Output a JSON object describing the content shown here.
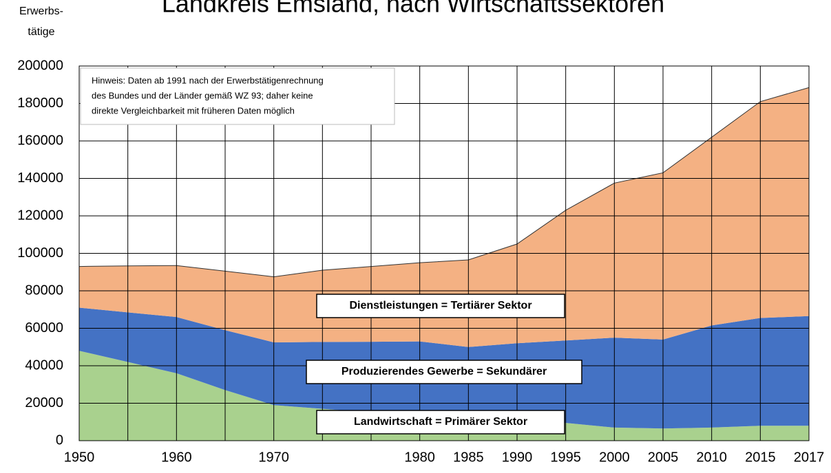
{
  "chart_data": {
    "type": "stacked_area",
    "title": "Landkreis Emsland, nach Wirtschaftssektoren",
    "ylabel_lines": [
      "Erwerbs-",
      "tätige"
    ],
    "note_lines": [
      "Hinweis: Daten ab 1991 nach der Erwerbstätigenrechnung",
      "des Bundes und der Länder gemäß WZ 93; daher keine",
      "direkte Vergleichbarkeit mit früheren Daten möglich"
    ],
    "categories": [
      1950,
      null,
      1960,
      null,
      1970,
      null,
      null,
      1980,
      1985,
      1990,
      1995,
      2000,
      2005,
      2010,
      2015,
      2017
    ],
    "series": [
      {
        "name": "Landwirtschaft = Primärer Sektor",
        "color": "#a9d18e",
        "values": [
          48000,
          42000,
          36000,
          27000,
          19000,
          17000,
          15000,
          14000,
          12500,
          11000,
          9500,
          7000,
          6500,
          7000,
          8000,
          8000
        ]
      },
      {
        "name": "Produzierendes Gewerbe = Sekundärer",
        "color": "#4472c4",
        "values": [
          23000,
          26500,
          30000,
          32000,
          33500,
          35700,
          37800,
          39000,
          37500,
          41000,
          44000,
          48000,
          47500,
          54500,
          57500,
          58500
        ]
      },
      {
        "name": "Dienstleistungen = Tertiärer Sektor",
        "color": "#f4b183",
        "values": [
          22000,
          24800,
          27500,
          31500,
          35000,
          38300,
          40200,
          42000,
          46500,
          53000,
          69500,
          82500,
          89000,
          100500,
          115500,
          122000
        ]
      }
    ],
    "ylim": [
      0,
      200000
    ],
    "yticks": [
      0,
      20000,
      40000,
      60000,
      80000,
      100000,
      120000,
      140000,
      160000,
      180000,
      200000
    ],
    "grid": true
  }
}
